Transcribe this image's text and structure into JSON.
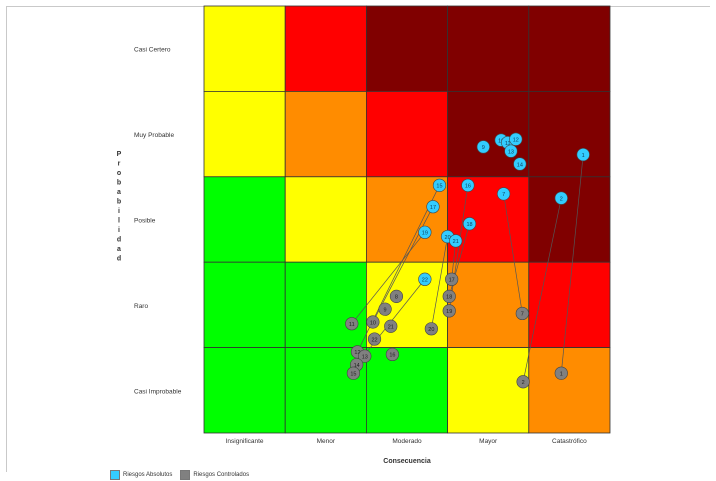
{
  "chart_data": {
    "type": "scatter",
    "title": "",
    "xlabel": "Consecuencia",
    "ylabel": "Probabilidad",
    "x_categories": [
      "Insignificante",
      "Menor",
      "Moderado",
      "Mayor",
      "Catastrófico"
    ],
    "y_categories": [
      "Casi Improbable",
      "Raro",
      "Posible",
      "Muy Probable",
      "Casi Certero"
    ],
    "heatmap_colors": [
      [
        "#ffff00",
        "#ff0000",
        "#800000",
        "#800000",
        "#800000"
      ],
      [
        "#ffff00",
        "#ff8c00",
        "#ff0000",
        "#800000",
        "#800000"
      ],
      [
        "#00ff00",
        "#ffff00",
        "#ff8c00",
        "#ff0000",
        "#800000"
      ],
      [
        "#00ff00",
        "#00ff00",
        "#ffff00",
        "#ff8c00",
        "#ff0000"
      ],
      [
        "#00ff00",
        "#00ff00",
        "#00ff00",
        "#ffff00",
        "#ff8c00"
      ]
    ],
    "heatmap_note": "rows listed from top (Casi Certero) to bottom (Casi Improbable)",
    "series": [
      {
        "name": "Riesgos Absolutos",
        "color": "#33ccff",
        "points": [
          {
            "label": "9",
            "x": 3.94,
            "y": 3.85
          },
          {
            "label": "10",
            "x": 4.16,
            "y": 3.93
          },
          {
            "label": "11",
            "x": 4.24,
            "y": 3.9
          },
          {
            "label": "12",
            "x": 4.34,
            "y": 3.94
          },
          {
            "label": "13",
            "x": 4.28,
            "y": 3.8
          },
          {
            "label": "14",
            "x": 4.39,
            "y": 3.65
          },
          {
            "label": "1",
            "x": 5.17,
            "y": 3.76
          },
          {
            "label": "2",
            "x": 4.9,
            "y": 3.25
          },
          {
            "label": "7",
            "x": 4.19,
            "y": 3.3
          },
          {
            "label": "15",
            "x": 3.4,
            "y": 3.4
          },
          {
            "label": "16",
            "x": 3.75,
            "y": 3.4
          },
          {
            "label": "17",
            "x": 3.32,
            "y": 3.15
          },
          {
            "label": "18",
            "x": 3.77,
            "y": 2.95
          },
          {
            "label": "19",
            "x": 3.22,
            "y": 2.85
          },
          {
            "label": "20",
            "x": 3.5,
            "y": 2.8
          },
          {
            "label": "21",
            "x": 3.6,
            "y": 2.75
          },
          {
            "label": "22",
            "x": 3.22,
            "y": 2.3
          }
        ]
      },
      {
        "name": "Riesgos Controlados",
        "color": "#808080",
        "points": [
          {
            "label": "1",
            "x": 4.9,
            "y": 1.2
          },
          {
            "label": "2",
            "x": 4.43,
            "y": 1.1
          },
          {
            "label": "7",
            "x": 4.42,
            "y": 1.9
          },
          {
            "label": "8",
            "x": 2.87,
            "y": 2.1
          },
          {
            "label": "9",
            "x": 2.73,
            "y": 1.95
          },
          {
            "label": "10",
            "x": 2.58,
            "y": 1.8
          },
          {
            "label": "11",
            "x": 2.32,
            "y": 1.78
          },
          {
            "label": "12",
            "x": 2.39,
            "y": 1.45
          },
          {
            "label": "13",
            "x": 2.48,
            "y": 1.4
          },
          {
            "label": "14",
            "x": 2.38,
            "y": 1.3
          },
          {
            "label": "15",
            "x": 2.34,
            "y": 1.2
          },
          {
            "label": "16",
            "x": 2.82,
            "y": 1.42
          },
          {
            "label": "17",
            "x": 3.55,
            "y": 2.3
          },
          {
            "label": "18",
            "x": 3.52,
            "y": 2.1
          },
          {
            "label": "19",
            "x": 3.52,
            "y": 1.93
          },
          {
            "label": "20",
            "x": 3.3,
            "y": 1.72
          },
          {
            "label": "21",
            "x": 2.8,
            "y": 1.75
          },
          {
            "label": "22",
            "x": 2.6,
            "y": 1.6
          }
        ]
      }
    ],
    "connections": [
      [
        "1",
        "1"
      ],
      [
        "2",
        "2"
      ],
      [
        "7",
        "7"
      ],
      [
        "15",
        "12"
      ],
      [
        "16",
        "19"
      ],
      [
        "17",
        "10"
      ],
      [
        "18",
        "18"
      ],
      [
        "19",
        "11"
      ],
      [
        "20",
        "20"
      ],
      [
        "21",
        "17"
      ],
      [
        "22",
        "14"
      ]
    ],
    "legend_position": "bottom-left"
  }
}
